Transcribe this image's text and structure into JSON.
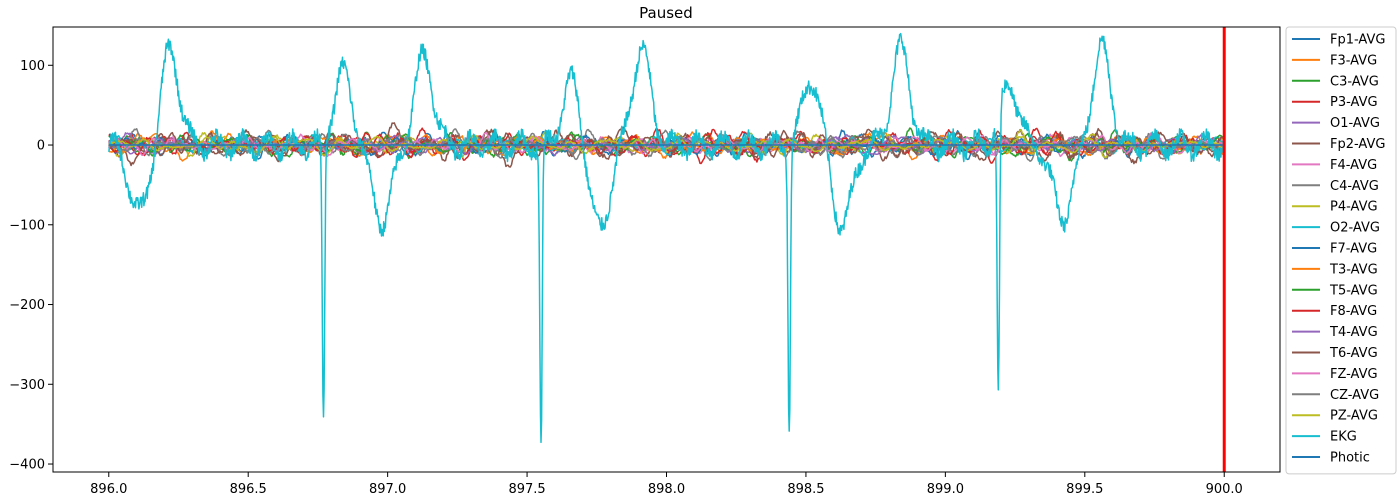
{
  "chart_data": {
    "type": "line",
    "title": "Paused",
    "xlabel": "",
    "ylabel": "",
    "xlim": [
      895.8,
      900.2
    ],
    "ylim": [
      -410,
      148
    ],
    "xticks": [
      "896.0",
      "896.5",
      "897.0",
      "897.5",
      "898.0",
      "898.5",
      "899.0",
      "899.5",
      "900.0"
    ],
    "xtick_values": [
      896.0,
      896.5,
      897.0,
      897.5,
      898.0,
      898.5,
      899.0,
      899.5,
      900.0
    ],
    "yticks": [
      "100",
      "0",
      "−100",
      "−200",
      "−300",
      "−400"
    ],
    "ytick_values": [
      100,
      0,
      -100,
      -200,
      -300,
      -400
    ],
    "x_range": [
      896.0,
      900.0
    ],
    "cursor": {
      "x": 900.0,
      "color": "#ff0000"
    },
    "grid": false,
    "legend_position": "outside-right",
    "series": [
      {
        "name": "Fp1-AVG",
        "color": "#1f77b4",
        "amplitude": 12
      },
      {
        "name": "F3-AVG",
        "color": "#ff7f0e",
        "amplitude": 12
      },
      {
        "name": "C3-AVG",
        "color": "#2ca02c",
        "amplitude": 12
      },
      {
        "name": "P3-AVG",
        "color": "#d62728",
        "amplitude": 14
      },
      {
        "name": "O1-AVG",
        "color": "#9467bd",
        "amplitude": 10
      },
      {
        "name": "Fp2-AVG",
        "color": "#8c564b",
        "amplitude": 18
      },
      {
        "name": "F4-AVG",
        "color": "#e377c2",
        "amplitude": 10
      },
      {
        "name": "C4-AVG",
        "color": "#7f7f7f",
        "amplitude": 12
      },
      {
        "name": "P4-AVG",
        "color": "#bcbd22",
        "amplitude": 10
      },
      {
        "name": "O2-AVG",
        "color": "#17becf",
        "amplitude": 10
      },
      {
        "name": "F7-AVG",
        "color": "#1f77b4",
        "amplitude": 10
      },
      {
        "name": "T3-AVG",
        "color": "#ff7f0e",
        "amplitude": 10
      },
      {
        "name": "T5-AVG",
        "color": "#2ca02c",
        "amplitude": 10
      },
      {
        "name": "F8-AVG",
        "color": "#d62728",
        "amplitude": 12
      },
      {
        "name": "T4-AVG",
        "color": "#9467bd",
        "amplitude": 8
      },
      {
        "name": "T6-AVG",
        "color": "#8c564b",
        "amplitude": 12
      },
      {
        "name": "FZ-AVG",
        "color": "#e377c2",
        "amplitude": 10
      },
      {
        "name": "CZ-AVG",
        "color": "#7f7f7f",
        "amplitude": 10
      },
      {
        "name": "PZ-AVG",
        "color": "#bcbd22",
        "amplitude": 8
      },
      {
        "name": "EKG",
        "color": "#17becf",
        "amplitude": 0,
        "qrs_spikes": [
          {
            "x": 896.77,
            "y": -360
          },
          {
            "x": 897.55,
            "y": -382
          },
          {
            "x": 898.44,
            "y": -361
          },
          {
            "x": 899.19,
            "y": -352
          }
        ],
        "peaks": [
          {
            "x": 896.22,
            "y": 120
          },
          {
            "x": 896.84,
            "y": 91
          },
          {
            "x": 897.13,
            "y": 112
          },
          {
            "x": 897.66,
            "y": 82
          },
          {
            "x": 897.91,
            "y": 121
          },
          {
            "x": 898.52,
            "y": 84
          },
          {
            "x": 898.84,
            "y": 122
          },
          {
            "x": 899.23,
            "y": 75
          },
          {
            "x": 899.56,
            "y": 123
          }
        ],
        "troughs": [
          {
            "x": 896.11,
            "y": -85
          },
          {
            "x": 896.98,
            "y": -95
          },
          {
            "x": 897.76,
            "y": -107
          },
          {
            "x": 898.63,
            "y": -101
          },
          {
            "x": 899.42,
            "y": -91
          }
        ]
      },
      {
        "name": "Photic",
        "color": "#1f77b4",
        "amplitude": 0
      }
    ]
  }
}
